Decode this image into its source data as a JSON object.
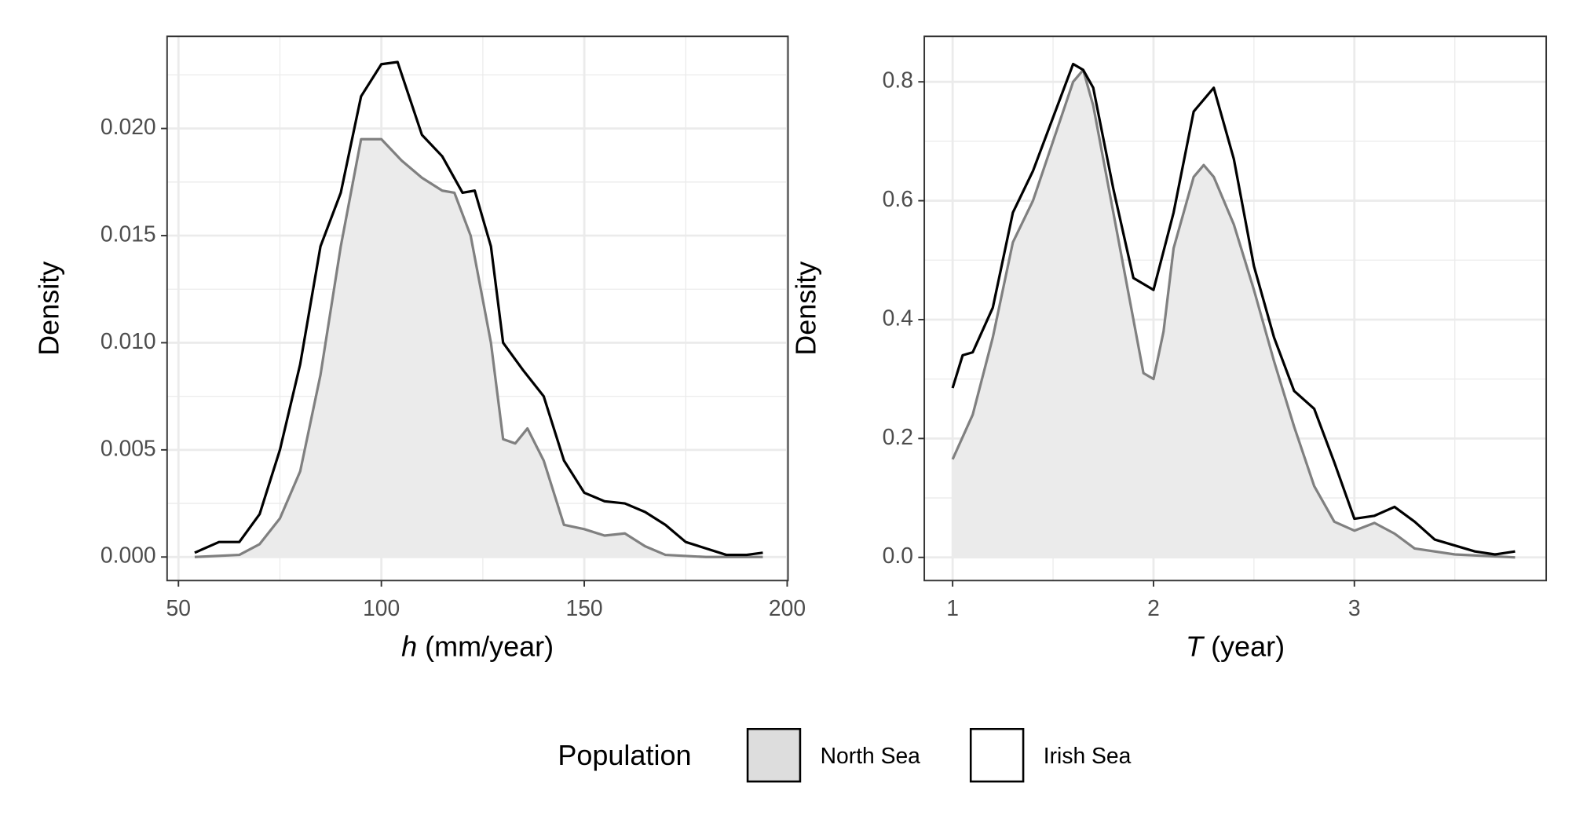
{
  "legend_title": "Population",
  "chart_data": [
    {
      "type": "density",
      "ylabel": "Density",
      "xlabel": {
        "symbol": "h",
        "unit": "(mm/year)"
      },
      "xlim": [
        47.2,
        200.2
      ],
      "ylim": [
        -0.0011,
        0.0243
      ],
      "xticks": [
        50,
        100,
        150,
        200
      ],
      "yticks": [
        {
          "value": 0,
          "label": "0.000"
        },
        {
          "value": 0.005,
          "label": "0.005"
        },
        {
          "value": 0.01,
          "label": "0.010"
        },
        {
          "value": 0.015,
          "label": "0.015"
        },
        {
          "value": 0.02,
          "label": "0.020"
        }
      ],
      "grid": true,
      "series": [
        {
          "name": "North Sea",
          "color": "#808080",
          "fill": "#ebebeb",
          "x": [
            54,
            65,
            70,
            75,
            80,
            85,
            90,
            95,
            100,
            105,
            110,
            115,
            118,
            122,
            127,
            130,
            133,
            136,
            140,
            145,
            150,
            155,
            160,
            165,
            170,
            180,
            194
          ],
          "values": [
            0,
            0.0001,
            0.0006,
            0.0018,
            0.004,
            0.0085,
            0.0145,
            0.0195,
            0.0195,
            0.0185,
            0.0177,
            0.0171,
            0.017,
            0.015,
            0.01,
            0.0055,
            0.0053,
            0.006,
            0.0045,
            0.0015,
            0.0013,
            0.001,
            0.0011,
            0.0005,
            0.0001,
            0,
            0
          ]
        },
        {
          "name": "Irish Sea",
          "color": "#000000",
          "x": [
            54,
            60,
            65,
            70,
            75,
            80,
            85,
            90,
            95,
            100,
            104,
            110,
            115,
            120,
            123,
            127,
            130,
            135,
            140,
            145,
            150,
            155,
            160,
            165,
            170,
            175,
            180,
            185,
            190,
            194
          ],
          "values": [
            0.0002,
            0.0007,
            0.0007,
            0.002,
            0.005,
            0.009,
            0.0145,
            0.017,
            0.0215,
            0.023,
            0.0231,
            0.0197,
            0.0187,
            0.017,
            0.0171,
            0.0145,
            0.01,
            0.0087,
            0.0075,
            0.0045,
            0.003,
            0.0026,
            0.0025,
            0.0021,
            0.0015,
            0.0007,
            0.0004,
            0.0001,
            0.0001,
            0.0002
          ]
        }
      ]
    },
    {
      "type": "density",
      "ylabel": "Density",
      "xlabel": {
        "symbol": "T",
        "unit": "(year)"
      },
      "xlim": [
        0.859,
        3.955
      ],
      "ylim": [
        -0.039,
        0.8765
      ],
      "xticks": [
        1,
        2,
        3
      ],
      "yticks": [
        {
          "value": 0,
          "label": "0.0"
        },
        {
          "value": 0.2,
          "label": "0.2"
        },
        {
          "value": 0.4,
          "label": "0.4"
        },
        {
          "value": 0.6,
          "label": "0.6"
        },
        {
          "value": 0.8,
          "label": "0.8"
        }
      ],
      "grid": true,
      "series": [
        {
          "name": "North Sea",
          "color": "#808080",
          "fill": "#ebebeb",
          "x": [
            1.0,
            1.1,
            1.2,
            1.3,
            1.4,
            1.5,
            1.6,
            1.65,
            1.7,
            1.8,
            1.9,
            1.95,
            2.0,
            2.05,
            2.1,
            2.2,
            2.25,
            2.3,
            2.4,
            2.5,
            2.6,
            2.7,
            2.8,
            2.9,
            3.0,
            3.1,
            3.2,
            3.3,
            3.5,
            3.8
          ],
          "values": [
            0.165,
            0.24,
            0.37,
            0.53,
            0.6,
            0.7,
            0.8,
            0.82,
            0.76,
            0.58,
            0.4,
            0.31,
            0.3,
            0.38,
            0.52,
            0.64,
            0.66,
            0.64,
            0.56,
            0.45,
            0.33,
            0.22,
            0.12,
            0.06,
            0.045,
            0.058,
            0.04,
            0.015,
            0.005,
            0
          ]
        },
        {
          "name": "Irish Sea",
          "color": "#000000",
          "x": [
            1.0,
            1.05,
            1.1,
            1.2,
            1.3,
            1.4,
            1.5,
            1.6,
            1.65,
            1.7,
            1.8,
            1.9,
            2.0,
            2.1,
            2.2,
            2.3,
            2.4,
            2.5,
            2.6,
            2.7,
            2.8,
            2.9,
            3.0,
            3.1,
            3.2,
            3.3,
            3.4,
            3.6,
            3.7,
            3.8
          ],
          "values": [
            0.285,
            0.34,
            0.345,
            0.42,
            0.58,
            0.65,
            0.74,
            0.83,
            0.82,
            0.79,
            0.62,
            0.47,
            0.45,
            0.58,
            0.75,
            0.79,
            0.67,
            0.49,
            0.37,
            0.28,
            0.25,
            0.16,
            0.065,
            0.07,
            0.085,
            0.06,
            0.03,
            0.01,
            0.005,
            0.01
          ]
        }
      ]
    }
  ]
}
